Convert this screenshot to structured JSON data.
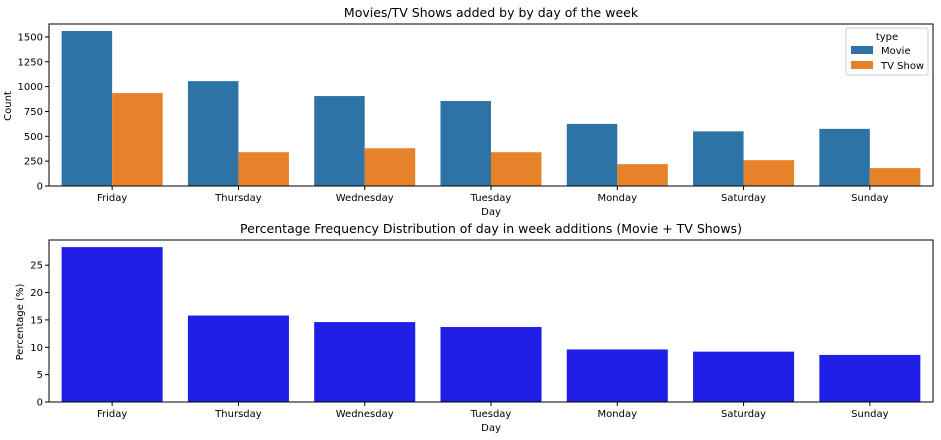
{
  "chart_data": [
    {
      "type": "bar",
      "title": "Movies/TV Shows added by by day of the week",
      "xlabel": "Day",
      "ylabel": "Count",
      "categories": [
        "Friday",
        "Thursday",
        "Wednesday",
        "Tuesday",
        "Monday",
        "Saturday",
        "Sunday"
      ],
      "series": [
        {
          "name": "Movie",
          "color": "#2e73a6",
          "values": [
            1560,
            1055,
            905,
            855,
            625,
            550,
            575
          ]
        },
        {
          "name": "TV Show",
          "color": "#e6832a",
          "values": [
            935,
            340,
            380,
            340,
            220,
            260,
            180
          ]
        }
      ],
      "ylim": [
        0,
        1630
      ],
      "yticks": [
        "0",
        "250",
        "500",
        "750",
        "1000",
        "1250",
        "1500"
      ],
      "legend": {
        "title": "type",
        "placement": "top-right"
      },
      "grid": false
    },
    {
      "type": "bar",
      "title": "Percentage Frequency Distribution of day in week additions (Movie + TV Shows)",
      "xlabel": "Day",
      "ylabel": "Percentage (%)",
      "categories": [
        "Friday",
        "Thursday",
        "Wednesday",
        "Tuesday",
        "Monday",
        "Saturday",
        "Sunday"
      ],
      "series": [
        {
          "color": "#1f1fe5",
          "values": [
            28.3,
            15.8,
            14.6,
            13.7,
            9.6,
            9.2,
            8.6
          ]
        }
      ],
      "ylim": [
        0,
        29.6
      ],
      "yticks": [
        "0",
        "5",
        "10",
        "15",
        "20",
        "25"
      ],
      "grid": false
    }
  ]
}
